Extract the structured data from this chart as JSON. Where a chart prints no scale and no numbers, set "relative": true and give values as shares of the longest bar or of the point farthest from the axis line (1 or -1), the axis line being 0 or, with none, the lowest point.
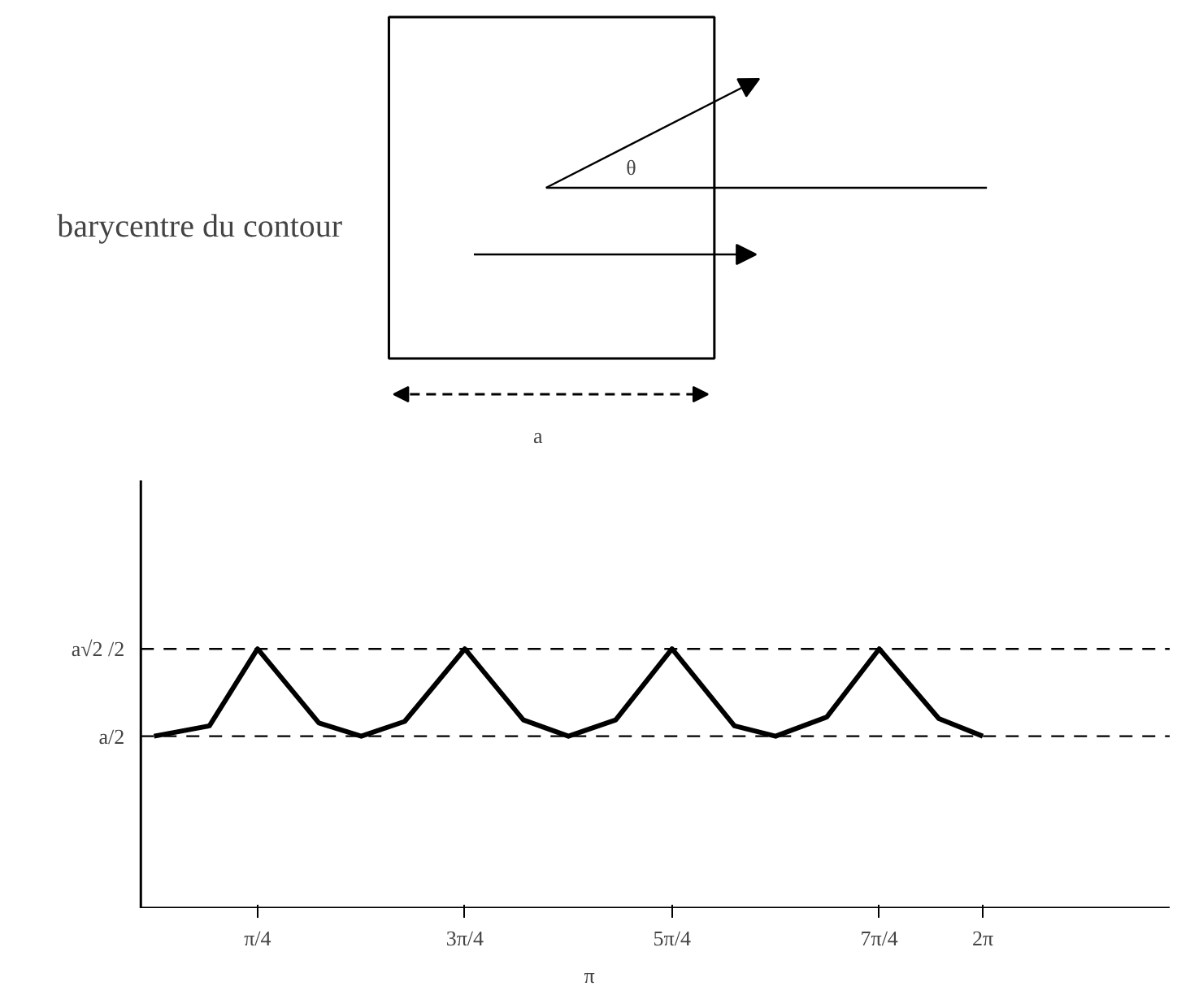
{
  "chart_data": {
    "type": "line",
    "xlabel": "π",
    "x": [
      0,
      0.42,
      0.785,
      1.25,
      1.571,
      1.9,
      2.356,
      2.8,
      3.142,
      3.5,
      3.927,
      4.4,
      4.712,
      5.1,
      5.498,
      5.95,
      6.283
    ],
    "values": [
      0.663,
      0.703,
      1,
      0.714,
      0.663,
      0.72,
      1,
      0.726,
      0.663,
      0.726,
      1,
      0.703,
      0.663,
      0.737,
      1,
      0.731,
      0.663
    ],
    "relative": true,
    "color": "#000000",
    "marker": "none",
    "line_style": "solid",
    "grid": false,
    "xlim": [
      -0.1,
      7.7
    ],
    "xticks": [
      {
        "value": 0.785,
        "label": "π/4"
      },
      {
        "value": 2.356,
        "label": "3π/4"
      },
      {
        "value": 3.927,
        "label": "5π/4"
      },
      {
        "value": 5.498,
        "label": "7π/4"
      },
      {
        "value": 6.283,
        "label": "2π"
      }
    ],
    "ref_lines": [
      {
        "axis": "y",
        "value": 0.663,
        "label": "a/2",
        "line_style": "dashed"
      },
      {
        "axis": "y",
        "value": 1,
        "label": "a√2 /2",
        "line_style": "dashed"
      }
    ],
    "annotations": [
      "θ",
      "barycentre du contour",
      "a"
    ]
  }
}
